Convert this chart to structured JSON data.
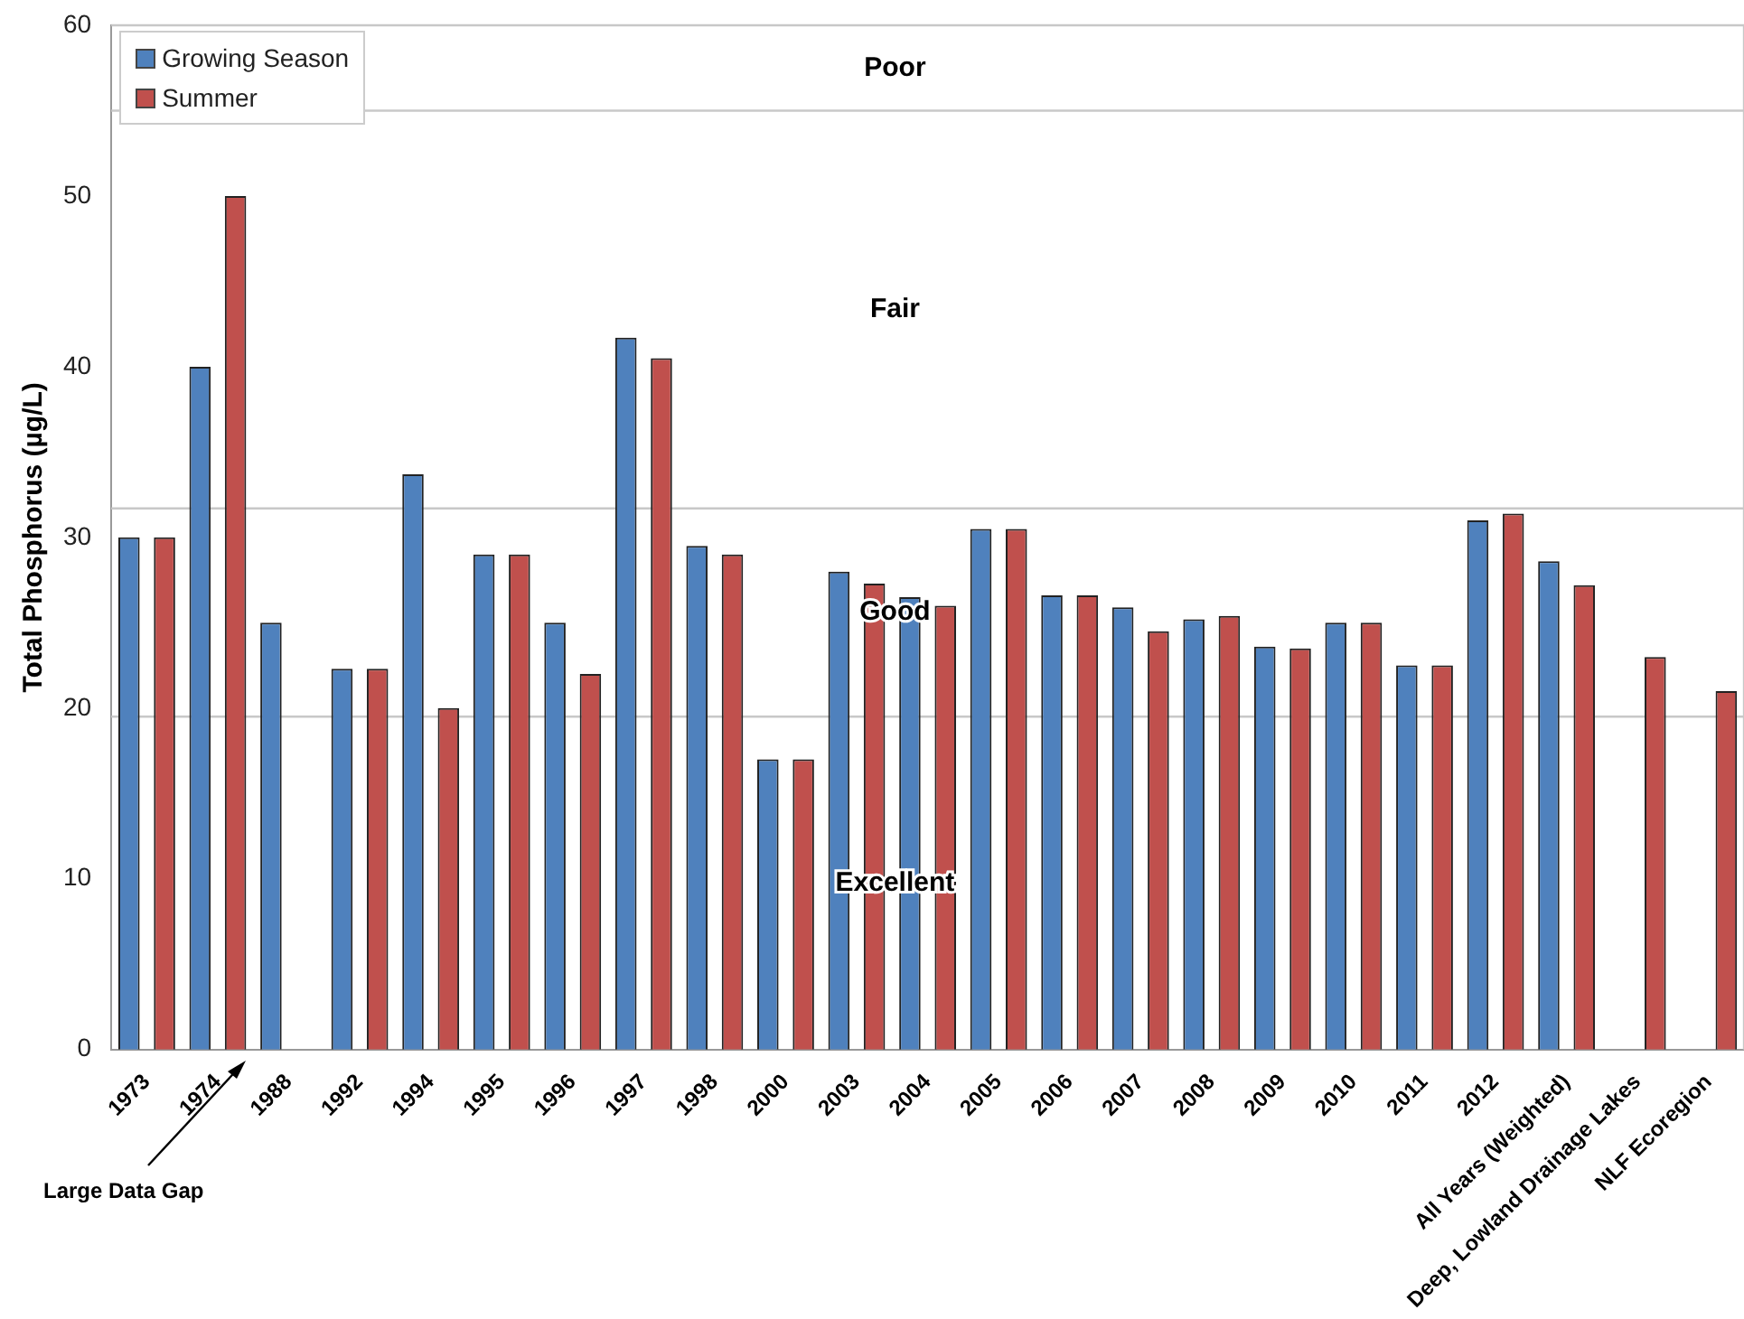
{
  "chart_data": {
    "type": "bar",
    "ylabel": "Total Phosphorus (µg/L)",
    "categories": [
      "1973",
      "1974",
      "1988",
      "1992",
      "1994",
      "1995",
      "1996",
      "1997",
      "1998",
      "2000",
      "2003",
      "2004",
      "2005",
      "2006",
      "2007",
      "2008",
      "2009",
      "2010",
      "2011",
      "2012",
      "All Years (Weighted)",
      "Deep, Lowland Drainage Lakes",
      "NLF Ecoregion"
    ],
    "series": [
      {
        "name": "Growing Season",
        "color": "#4f81bd",
        "values": [
          30,
          40,
          25,
          22.3,
          33.7,
          29,
          25,
          41.7,
          29.5,
          17,
          28,
          26.5,
          30.5,
          26.6,
          25.9,
          25.2,
          23.6,
          25,
          22.5,
          31,
          28.6,
          null,
          null
        ]
      },
      {
        "name": "Summer",
        "color": "#c0504d",
        "values": [
          30,
          50,
          null,
          22.3,
          20,
          29,
          22,
          40.5,
          29,
          17,
          27.3,
          26,
          30.5,
          26.6,
          24.5,
          25.4,
          23.5,
          25,
          22.5,
          31.4,
          27.2,
          23,
          21
        ]
      }
    ],
    "ylim": [
      0,
      60
    ],
    "yticks": [
      0,
      10,
      20,
      30,
      40,
      50,
      60
    ],
    "ref_lines": [
      {
        "axis": "y",
        "value": 19.5
      },
      {
        "axis": "y",
        "value": 31.7
      },
      {
        "axis": "y",
        "value": 55
      }
    ],
    "annotations": [
      "Excellent",
      "Good",
      "Fair",
      "Poor",
      "Large Data Gap"
    ],
    "legend": "top left"
  }
}
